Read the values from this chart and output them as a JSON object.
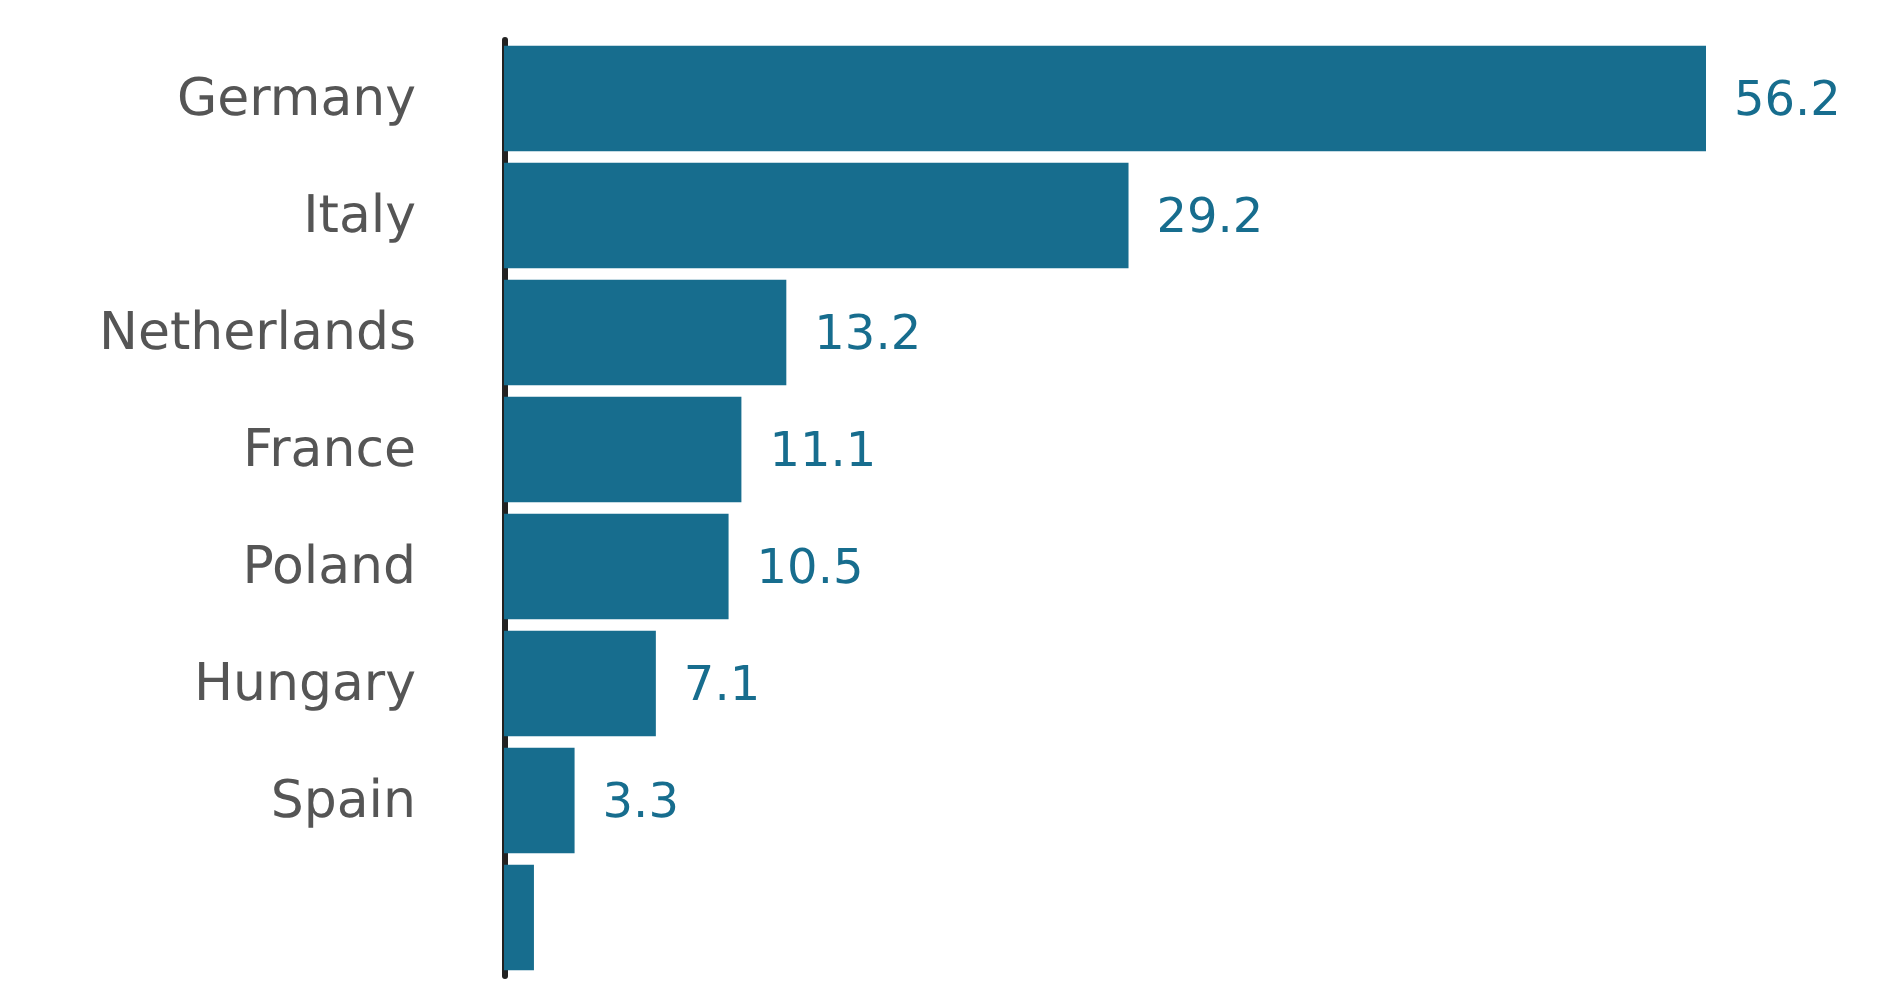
{
  "chart_data": {
    "type": "bar",
    "orientation": "horizontal",
    "categories": [
      "Germany",
      "Italy",
      "Netherlands",
      "France",
      "Poland",
      "Hungary",
      "Spain",
      null
    ],
    "values": [
      56.2,
      29.2,
      13.2,
      11.1,
      10.5,
      7.1,
      3.3,
      1.4
    ],
    "value_labels": [
      "56.2",
      "29.2",
      "13.2",
      "11.1",
      "10.5",
      "7.1",
      "3.3",
      null
    ],
    "color": "#176d8e"
  }
}
